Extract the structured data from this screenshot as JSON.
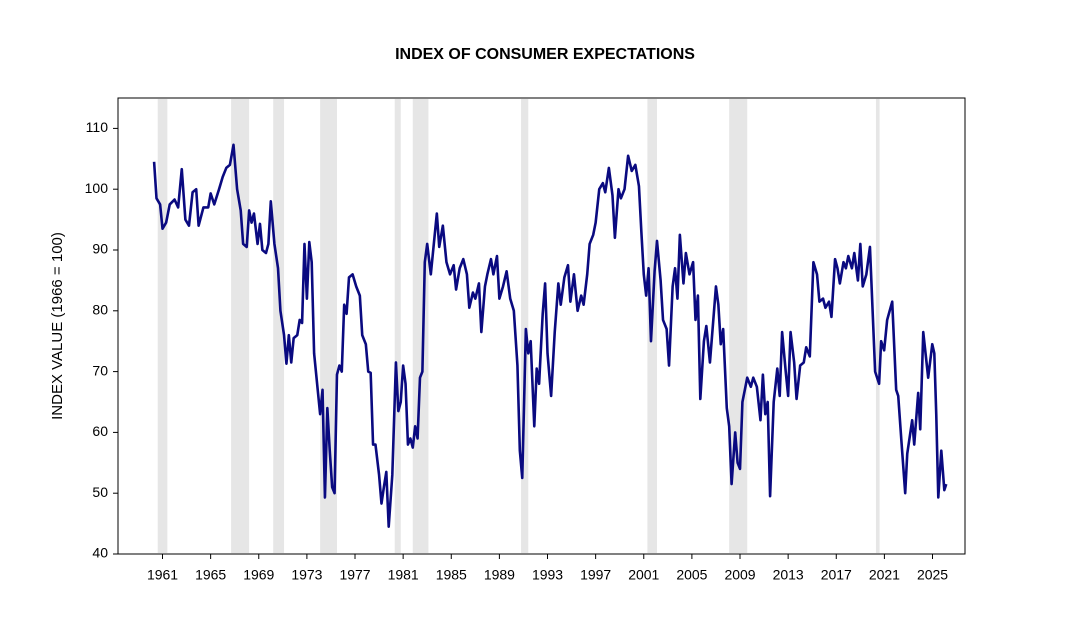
{
  "chart_data": {
    "type": "line",
    "title": "INDEX OF CONSUMER EXPECTATIONS",
    "y_label": "INDEX VALUE (1966 = 100)",
    "xlim": [
      1957.3,
      2027.7
    ],
    "ylim": [
      40,
      115
    ],
    "xticks": [
      1961,
      1965,
      1969,
      1973,
      1977,
      1981,
      1985,
      1989,
      1993,
      1997,
      2001,
      2005,
      2009,
      2013,
      2017,
      2021,
      2025
    ],
    "yticks": [
      40,
      50,
      60,
      70,
      80,
      90,
      100,
      110
    ],
    "grid": false,
    "shaded_color": "#e6e6e6",
    "shaded_periods": [
      [
        1960.6,
        1961.4
      ],
      [
        1966.7,
        1968.2
      ],
      [
        1970.2,
        1971.1
      ],
      [
        1974.1,
        1975.5
      ],
      [
        1980.3,
        1980.8
      ],
      [
        1981.8,
        1983.1
      ],
      [
        1990.8,
        1991.4
      ],
      [
        2001.3,
        2002.1
      ],
      [
        2008.1,
        2009.6
      ],
      [
        2020.3,
        2020.6
      ]
    ],
    "series": [
      {
        "name": "Index of Consumer Expectations",
        "color": "#0a0a80",
        "x": [
          1960.3,
          1960.5,
          1960.8,
          1961.0,
          1961.3,
          1961.6,
          1962.0,
          1962.3,
          1962.6,
          1962.9,
          1963.2,
          1963.5,
          1963.8,
          1964.0,
          1964.4,
          1964.8,
          1965.0,
          1965.3,
          1965.7,
          1966.0,
          1966.3,
          1966.6,
          1966.9,
          1967.2,
          1967.5,
          1967.7,
          1968.0,
          1968.2,
          1968.4,
          1968.6,
          1968.9,
          1969.1,
          1969.3,
          1969.6,
          1969.8,
          1970.0,
          1970.3,
          1970.6,
          1970.8,
          1971.1,
          1971.3,
          1971.5,
          1971.7,
          1971.9,
          1972.2,
          1972.4,
          1972.6,
          1972.8,
          1973.0,
          1973.2,
          1973.4,
          1973.6,
          1973.9,
          1974.1,
          1974.3,
          1974.5,
          1974.7,
          1974.9,
          1975.1,
          1975.3,
          1975.5,
          1975.7,
          1975.9,
          1976.1,
          1976.3,
          1976.5,
          1976.8,
          1977.1,
          1977.4,
          1977.6,
          1977.9,
          1978.1,
          1978.3,
          1978.5,
          1978.7,
          1979.0,
          1979.2,
          1979.4,
          1979.6,
          1979.8,
          1980.1,
          1980.4,
          1980.6,
          1980.8,
          1981.0,
          1981.2,
          1981.4,
          1981.6,
          1981.8,
          1982.0,
          1982.2,
          1982.4,
          1982.6,
          1982.8,
          1983.0,
          1983.3,
          1983.6,
          1983.8,
          1984.0,
          1984.3,
          1984.6,
          1984.9,
          1985.2,
          1985.4,
          1985.7,
          1986.0,
          1986.3,
          1986.5,
          1986.8,
          1987.0,
          1987.3,
          1987.5,
          1987.8,
          1988.0,
          1988.3,
          1988.5,
          1988.8,
          1989.0,
          1989.3,
          1989.6,
          1989.9,
          1990.2,
          1990.5,
          1990.7,
          1990.9,
          1991.2,
          1991.4,
          1991.6,
          1991.9,
          1992.1,
          1992.3,
          1992.6,
          1992.8,
          1993.0,
          1993.3,
          1993.6,
          1993.9,
          1994.1,
          1994.4,
          1994.7,
          1994.9,
          1995.2,
          1995.5,
          1995.8,
          1996.0,
          1996.3,
          1996.5,
          1996.8,
          1997.0,
          1997.3,
          1997.6,
          1997.8,
          1998.1,
          1998.4,
          1998.6,
          1998.9,
          1999.1,
          1999.4,
          1999.7,
          2000.0,
          2000.3,
          2000.6,
          2000.8,
          2001.0,
          2001.2,
          2001.4,
          2001.6,
          2001.9,
          2002.1,
          2002.4,
          2002.6,
          2002.9,
          2003.1,
          2003.4,
          2003.6,
          2003.8,
          2004.0,
          2004.3,
          2004.5,
          2004.8,
          2005.1,
          2005.3,
          2005.5,
          2005.7,
          2006.0,
          2006.2,
          2006.5,
          2006.8,
          2007.0,
          2007.2,
          2007.4,
          2007.6,
          2007.9,
          2008.1,
          2008.3,
          2008.6,
          2008.8,
          2009.0,
          2009.2,
          2009.4,
          2009.6,
          2009.9,
          2010.1,
          2010.4,
          2010.7,
          2010.9,
          2011.1,
          2011.3,
          2011.5,
          2011.8,
          2012.1,
          2012.3,
          2012.5,
          2012.8,
          2013.0,
          2013.2,
          2013.5,
          2013.7,
          2014.0,
          2014.3,
          2014.5,
          2014.8,
          2015.1,
          2015.4,
          2015.6,
          2015.9,
          2016.1,
          2016.4,
          2016.6,
          2016.9,
          2017.1,
          2017.3,
          2017.6,
          2017.8,
          2018.0,
          2018.3,
          2018.5,
          2018.8,
          2019.0,
          2019.2,
          2019.5,
          2019.8,
          2020.23,
          2020.56,
          2020.73,
          2020.98,
          2021.23,
          2021.65,
          2021.98,
          2022.15,
          2022.4,
          2022.73,
          2022.9,
          2023.31,
          2023.48,
          2023.81,
          2023.98,
          2024.23,
          2024.64,
          2024.98,
          2025.15,
          2025.31,
          2025.48,
          2025.73,
          2025.98,
          2026.14
        ],
        "values": [
          104.5,
          98.5,
          97.5,
          93.5,
          94.5,
          97.5,
          98.3,
          97,
          103.3,
          95,
          94,
          99.5,
          100,
          94,
          97,
          97,
          99.3,
          97.5,
          100,
          102,
          103.5,
          104,
          107.3,
          100,
          96.5,
          91,
          90.5,
          96.5,
          94.5,
          96,
          91,
          94.3,
          90,
          89.5,
          91,
          98,
          91,
          87,
          80,
          76,
          71.3,
          76,
          71.5,
          75.5,
          76,
          78.5,
          78,
          91,
          82,
          91.3,
          88,
          73,
          67,
          63,
          67,
          49.3,
          64,
          57,
          51,
          50,
          69.5,
          71,
          70,
          81,
          79.5,
          85.5,
          86,
          84,
          82.5,
          76,
          74.5,
          70,
          69.8,
          58,
          58,
          53,
          48.3,
          51,
          53.5,
          44.5,
          53,
          71.5,
          63.5,
          65,
          71,
          68,
          58,
          59,
          57.5,
          61,
          59,
          69,
          70,
          88,
          91,
          86,
          92,
          96,
          90.5,
          94,
          88,
          86,
          87.5,
          83.5,
          87,
          88.5,
          86,
          80.5,
          83,
          82,
          84.5,
          76.5,
          84,
          86,
          88.5,
          86,
          89,
          82,
          84,
          86.5,
          82,
          80,
          71,
          57,
          52.5,
          77,
          73,
          75,
          61,
          70.5,
          68,
          79.5,
          84.5,
          73,
          66,
          76.5,
          84.5,
          81,
          85.5,
          87.5,
          81.5,
          86,
          80,
          82.5,
          81,
          86,
          91,
          92.5,
          94.5,
          100,
          101,
          99.5,
          103.5,
          99,
          92,
          100,
          98.5,
          100,
          105.5,
          103,
          104,
          100.5,
          93,
          86,
          82.5,
          87,
          75,
          86.5,
          91.5,
          85,
          78.5,
          77,
          71,
          84,
          87,
          82,
          92.5,
          84.5,
          89.5,
          86,
          88,
          78.5,
          82.5,
          65.5,
          75,
          77.5,
          71.5,
          79,
          84,
          81,
          74.5,
          77,
          64,
          61,
          51.5,
          60,
          55,
          54,
          65,
          67,
          69,
          67.5,
          69,
          67.5,
          62,
          69.5,
          63,
          65,
          49.5,
          65,
          70.5,
          66,
          76.5,
          70,
          66,
          76.5,
          71.5,
          65.5,
          71,
          71.5,
          74,
          72.5,
          88,
          86,
          81.5,
          82,
          80.5,
          81.5,
          79,
          88.5,
          87,
          84.5,
          88,
          87,
          89,
          87,
          89.5,
          85,
          91,
          84,
          86,
          90.5,
          70,
          68,
          75,
          73.5,
          78.5,
          81.5,
          67,
          66,
          59,
          50,
          56.5,
          62,
          58,
          66.5,
          60.5,
          76.5,
          69,
          74.5,
          73,
          63,
          49.3,
          57,
          50.5,
          51.5
        ]
      }
    ]
  }
}
